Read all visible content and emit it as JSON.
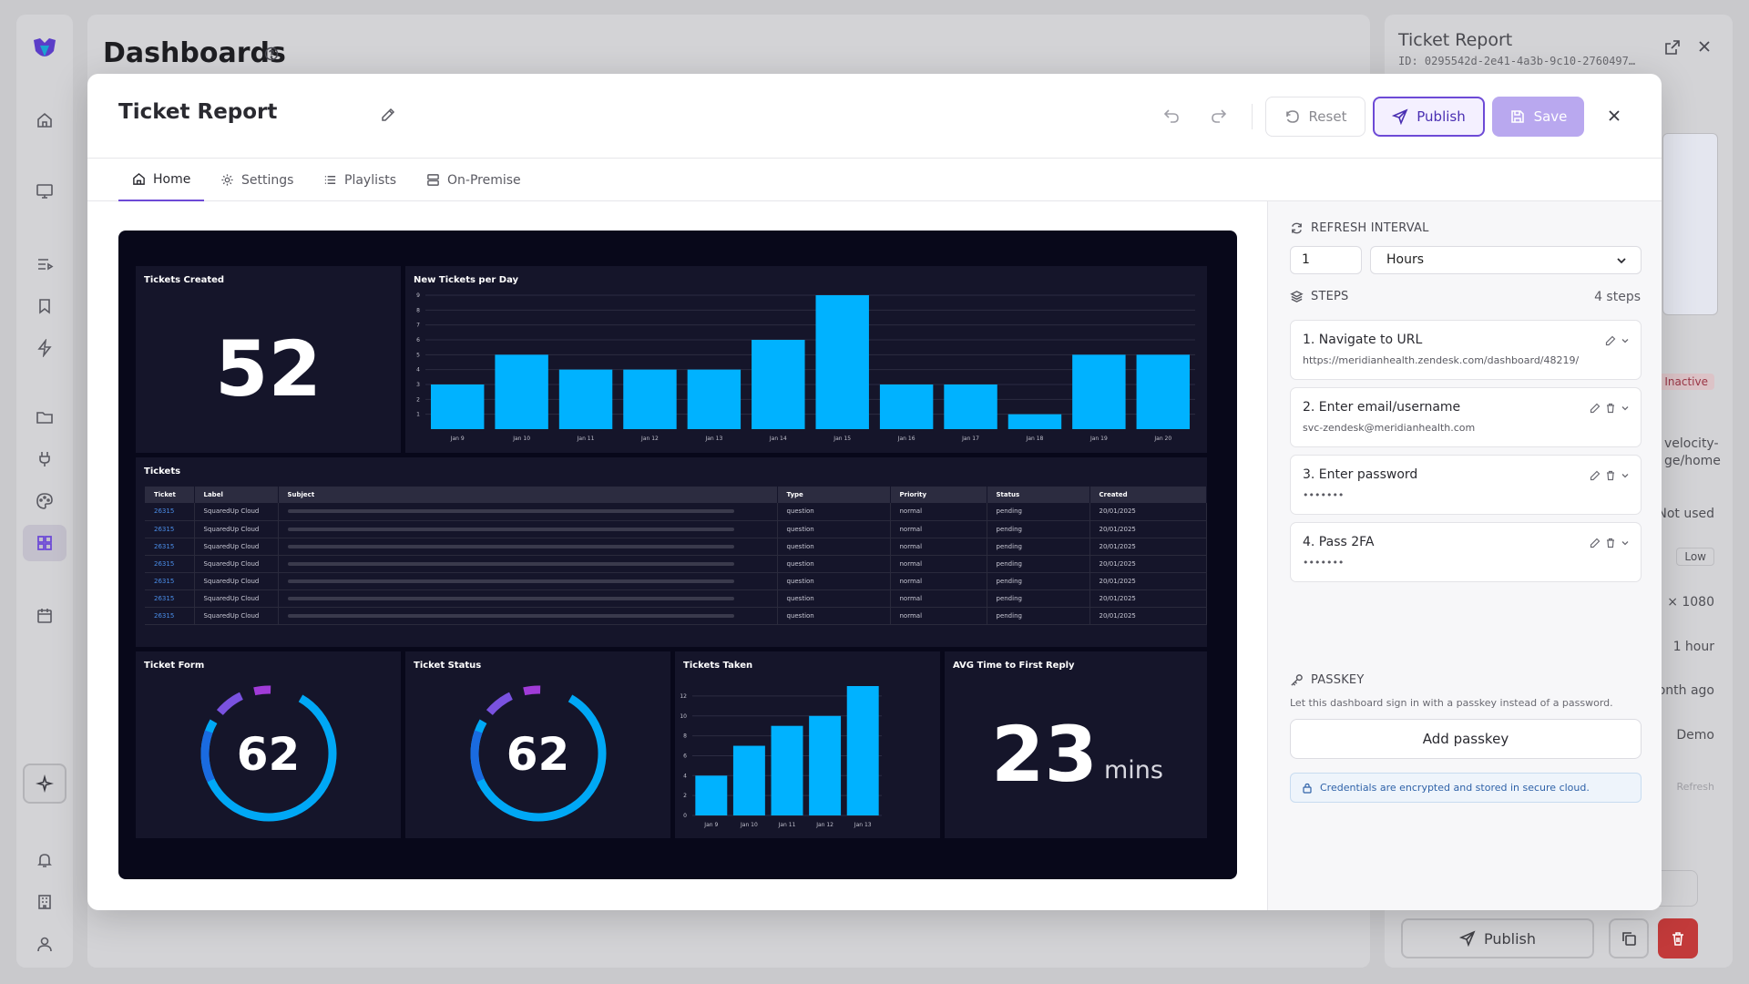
{
  "background": {
    "page_title": "Dashboards",
    "right_panel": {
      "title": "Ticket Report",
      "id": "ID: 0295542d-2e41-4a3b-9c10-2760497…",
      "status_badge": "Inactive",
      "url_fragment": "velocity-\nge/home",
      "usage": "Not used",
      "priority": "Low",
      "resolution": "× 1080",
      "interval": "1 hour",
      "updated": "onth ago",
      "owner": "Demo",
      "refresh_hint": "Refresh",
      "publish_label": "Publish"
    }
  },
  "modal": {
    "title": "Ticket Report",
    "reset_label": "Reset",
    "publish_label": "Publish",
    "save_label": "Save",
    "tabs": [
      {
        "label": "Home",
        "icon": "home-icon"
      },
      {
        "label": "Settings",
        "icon": "gear-icon"
      },
      {
        "label": "Playlists",
        "icon": "list-icon"
      },
      {
        "label": "On-Premise",
        "icon": "server-icon"
      }
    ]
  },
  "dashboard": {
    "tickets_created": {
      "title": "Tickets Created",
      "value": "52"
    },
    "tickets_table": {
      "title": "Tickets",
      "columns": [
        "Ticket",
        "Label",
        "Subject",
        "Type",
        "Priority",
        "Status",
        "Created"
      ],
      "rows": [
        {
          "ticket": "26315",
          "label": "SquaredUp Cloud",
          "type": "question",
          "priority": "normal",
          "status": "pending",
          "created": "20/01/2025"
        },
        {
          "ticket": "26315",
          "label": "SquaredUp Cloud",
          "type": "question",
          "priority": "normal",
          "status": "pending",
          "created": "20/01/2025"
        },
        {
          "ticket": "26315",
          "label": "SquaredUp Cloud",
          "type": "question",
          "priority": "normal",
          "status": "pending",
          "created": "20/01/2025"
        },
        {
          "ticket": "26315",
          "label": "SquaredUp Cloud",
          "type": "question",
          "priority": "normal",
          "status": "pending",
          "created": "20/01/2025"
        },
        {
          "ticket": "26315",
          "label": "SquaredUp Cloud",
          "type": "question",
          "priority": "normal",
          "status": "pending",
          "created": "20/01/2025"
        },
        {
          "ticket": "26315",
          "label": "SquaredUp Cloud",
          "type": "question",
          "priority": "normal",
          "status": "pending",
          "created": "20/01/2025"
        },
        {
          "ticket": "26315",
          "label": "SquaredUp Cloud",
          "type": "question",
          "priority": "normal",
          "status": "pending",
          "created": "20/01/2025"
        }
      ]
    },
    "ticket_form": {
      "title": "Ticket Form",
      "value": "62"
    },
    "ticket_status": {
      "title": "Ticket Status",
      "value": "62"
    },
    "avg_reply": {
      "title": "AVG Time to First Reply",
      "value": "23",
      "unit": "mins"
    }
  },
  "chart_data": [
    {
      "type": "bar",
      "title": "New Tickets per Day",
      "categories": [
        "Jan 9",
        "Jan 10",
        "Jan 11",
        "Jan 12",
        "Jan 13",
        "Jan 14",
        "Jan 15",
        "Jan 16",
        "Jan 17",
        "Jan 18",
        "Jan 19",
        "Jan 20"
      ],
      "values": [
        3,
        5,
        4,
        4,
        4,
        6,
        9,
        3,
        3,
        1,
        5,
        5
      ],
      "ylim": [
        0,
        9
      ],
      "yticks": [
        1,
        2,
        3,
        4,
        5,
        6,
        7,
        8,
        9
      ],
      "color": "#00b2ff",
      "grid": true
    },
    {
      "type": "bar",
      "title": "Tickets Taken",
      "categories": [
        "Jan 9",
        "Jan 10",
        "Jan 11",
        "Jan 12",
        "Jan 13"
      ],
      "values": [
        4,
        7,
        9,
        10,
        13
      ],
      "ylim": [
        0,
        13
      ],
      "yticks": [
        0,
        2,
        4,
        6,
        8,
        10,
        12
      ],
      "color": "#00b2ff",
      "grid": true
    }
  ],
  "side_panel": {
    "refresh_label": "Refresh interval",
    "refresh_value": "1",
    "refresh_unit": "Hours",
    "steps_label": "Steps",
    "steps_count": "4 steps",
    "steps": [
      {
        "title": "1. Navigate to URL",
        "sub": "https://meridianhealth.zendesk.com/dashboard/48219/"
      },
      {
        "title": "2. Enter email/username",
        "sub": "svc-zendesk@meridianhealth.com"
      },
      {
        "title": "3. Enter password",
        "sub": "•••••••"
      },
      {
        "title": "4. Pass 2FA",
        "sub": "•••••••"
      }
    ],
    "passkey_label": "Passkey",
    "passkey_hint": "Let this dashboard sign in with a passkey instead of a password.",
    "add_passkey": "Add passkey",
    "security_note": "Credentials are encrypted and stored in secure cloud."
  },
  "colors": {
    "accent": "#6d4ad6",
    "bar": "#00b2ff",
    "danger": "#c23a3a"
  }
}
